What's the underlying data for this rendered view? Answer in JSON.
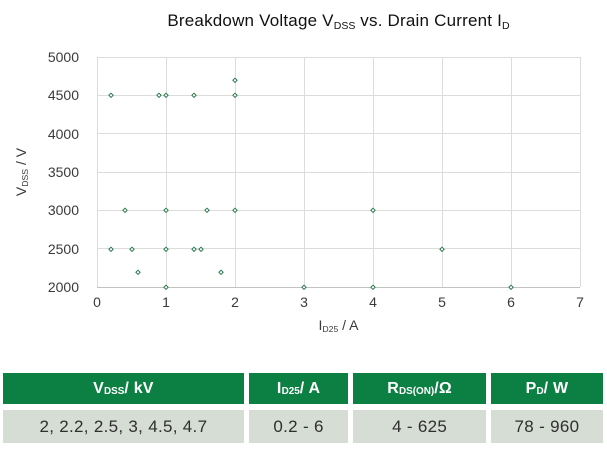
{
  "chart": {
    "title_parts": [
      {
        "t": "Breakdown Voltage V"
      },
      {
        "sub": "DSS"
      },
      {
        "t": " vs. Drain Current I"
      },
      {
        "sub": "D"
      }
    ],
    "x_axis_label_parts": [
      {
        "t": "I"
      },
      {
        "sub": "D25"
      },
      {
        "t": " / A"
      }
    ],
    "y_axis_label_parts": [
      {
        "t": "V"
      },
      {
        "sub": "DSS"
      },
      {
        "t": " / V"
      }
    ],
    "marker_color": "#2b7a4d"
  },
  "chart_data": {
    "type": "scatter",
    "title": "Breakdown Voltage VDSS vs. Drain Current ID",
    "xlabel": "ID25 / A",
    "ylabel": "VDSS / V",
    "xlim": [
      0,
      7
    ],
    "ylim": [
      2000,
      5000
    ],
    "x_ticks": [
      0,
      1,
      2,
      3,
      4,
      5,
      6,
      7
    ],
    "y_ticks": [
      5000,
      4500,
      4000,
      3500,
      3000,
      2500,
      2000
    ],
    "grid": true,
    "legend": "none",
    "marker_style": "hollow-diamond",
    "points": [
      [
        2.0,
        4700
      ],
      [
        0.2,
        4500
      ],
      [
        0.9,
        4500
      ],
      [
        1.0,
        4500
      ],
      [
        1.4,
        4500
      ],
      [
        2.0,
        4500
      ],
      [
        0.4,
        3000
      ],
      [
        1.0,
        3000
      ],
      [
        1.6,
        3000
      ],
      [
        2.0,
        3000
      ],
      [
        4.0,
        3000
      ],
      [
        0.2,
        2500
      ],
      [
        0.5,
        2500
      ],
      [
        1.0,
        2500
      ],
      [
        1.4,
        2500
      ],
      [
        1.5,
        2500
      ],
      [
        5.0,
        2500
      ],
      [
        0.6,
        2200
      ],
      [
        1.8,
        2200
      ],
      [
        1.0,
        2000
      ],
      [
        3.0,
        2000
      ],
      [
        4.0,
        2000
      ],
      [
        6.0,
        2000
      ]
    ]
  },
  "table": {
    "header_bg": "#0c7f43",
    "row_bg": "#d6ddd4",
    "columns": [
      {
        "header_parts": [
          {
            "t": "V"
          },
          {
            "sub": "DSS"
          },
          {
            "t": " / kV"
          }
        ],
        "value": "2, 2.2, 2.5, 3, 4.5, 4.7",
        "flex": 247
      },
      {
        "header_parts": [
          {
            "t": "I"
          },
          {
            "sub": "D25"
          },
          {
            "t": " / A"
          }
        ],
        "value": "0.2 - 6",
        "flex": 102
      },
      {
        "header_parts": [
          {
            "t": "R"
          },
          {
            "sub": "DS(ON)"
          },
          {
            "t": "/Ω"
          }
        ],
        "value": "4 - 625",
        "flex": 136
      },
      {
        "header_parts": [
          {
            "t": "P"
          },
          {
            "sub": "D"
          },
          {
            "t": " / W"
          }
        ],
        "value": "78 - 960",
        "flex": 115
      }
    ]
  }
}
